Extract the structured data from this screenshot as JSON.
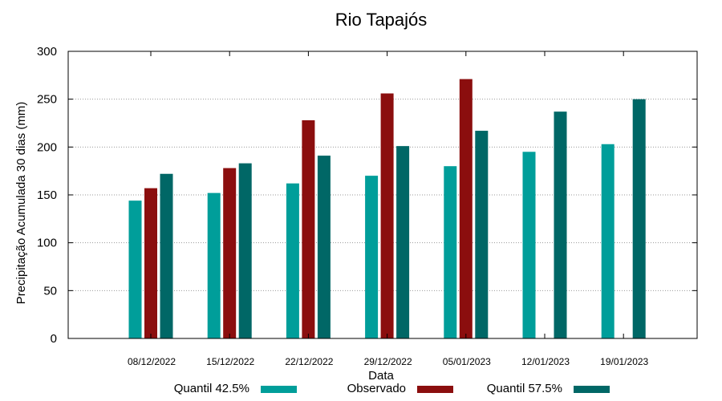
{
  "chart_data": {
    "type": "bar",
    "title": "Rio Tapajós",
    "xlabel": "Data",
    "ylabel": "Precipitação Acumulada 30 dias (mm)",
    "ylim": [
      0,
      300
    ],
    "yticks": [
      0,
      50,
      100,
      150,
      200,
      250,
      300
    ],
    "grid": true,
    "legend_position": "bottom",
    "categories": [
      "08/12/2022",
      "15/12/2022",
      "22/12/2022",
      "29/12/2022",
      "05/01/2023",
      "12/01/2023",
      "19/01/2023"
    ],
    "series": [
      {
        "name": "Quantil 42.5%",
        "color": "#009e9a",
        "values": [
          144,
          152,
          162,
          170,
          180,
          195,
          203
        ]
      },
      {
        "name": "Observado",
        "color": "#8b0e0e",
        "values": [
          157,
          178,
          228,
          256,
          271,
          null,
          null
        ]
      },
      {
        "name": "Quantil 57.5%",
        "color": "#006766",
        "values": [
          172,
          183,
          191,
          201,
          217,
          237,
          250
        ]
      }
    ]
  }
}
